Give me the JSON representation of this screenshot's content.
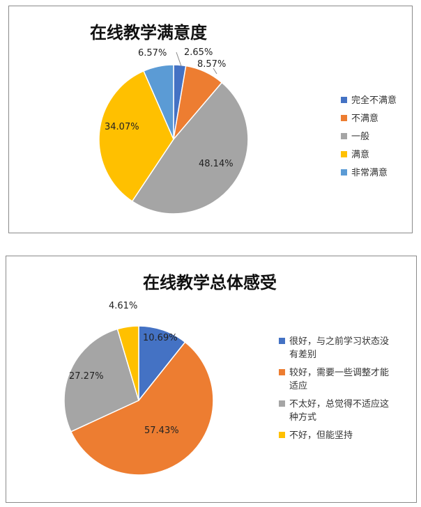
{
  "chart_data": [
    {
      "type": "pie",
      "title": "在线教学满意度",
      "categories": [
        "完全不满意",
        "不满意",
        "一般",
        "满意",
        "非常满意"
      ],
      "values": [
        2.65,
        8.57,
        48.14,
        34.07,
        6.57
      ],
      "value_labels": [
        "2.65%",
        "8.57%",
        "48.14%",
        "34.07%",
        "6.57%"
      ],
      "colors": [
        "#4472C4",
        "#ED7D31",
        "#A5A5A5",
        "#FFC000",
        "#5B9BD5"
      ],
      "legend_position": "right"
    },
    {
      "type": "pie",
      "title": "在线教学总体感受",
      "categories": [
        "很好，与之前学习状态没有差别",
        "较好，需要一些调整才能适应",
        "不太好，总觉得不适应这种方式",
        "不好，但能坚持"
      ],
      "legend_lines": [
        [
          "很好，与之前学习状态没",
          "有差别"
        ],
        [
          "较好，需要一些调整才能",
          "适应"
        ],
        [
          "不太好，总觉得不适应这",
          "种方式"
        ],
        [
          "不好，但能坚持"
        ]
      ],
      "values": [
        10.69,
        57.43,
        27.27,
        4.61
      ],
      "value_labels": [
        "10.69%",
        "57.43%",
        "27.27%",
        "4.61%"
      ],
      "colors": [
        "#4472C4",
        "#ED7D31",
        "#A5A5A5",
        "#FFC000"
      ],
      "legend_position": "right"
    }
  ]
}
